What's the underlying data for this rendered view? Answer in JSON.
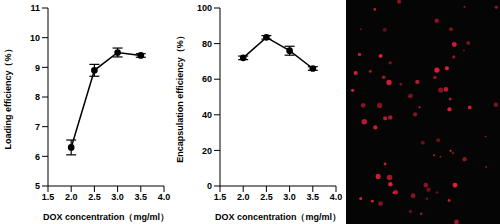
{
  "chart_data": [
    {
      "type": "line",
      "xlabel": "DOX concentration（mg/ml）",
      "ylabel": "Loading efficiency（%）",
      "x": [
        2.0,
        2.5,
        3.0,
        3.5
      ],
      "values": [
        6.3,
        8.9,
        9.5,
        9.4
      ],
      "errors": [
        0.25,
        0.2,
        0.15,
        0.06
      ],
      "color": "#000000",
      "marker": "circle",
      "line_style": "solid",
      "grid": false,
      "xlim": [
        1.5,
        4.0
      ],
      "xticks": [
        1.5,
        {
          "value": 2,
          "label": "2.0"
        },
        2.5,
        {
          "value": 3,
          "label": "3.0"
        },
        3.5,
        {
          "value": 4,
          "label": "4.0"
        }
      ],
      "ylim": [
        5,
        11
      ],
      "yticks": [
        5,
        6,
        7,
        8,
        9,
        10,
        11
      ]
    },
    {
      "type": "line",
      "xlabel": "DOX concentration（mg/ml）",
      "ylabel": "Encapsulation efficiency（%）",
      "x": [
        2.0,
        2.5,
        3.0,
        3.5
      ],
      "values": [
        72,
        83.5,
        76,
        66
      ],
      "errors": [
        1,
        1,
        2.5,
        1
      ],
      "color": "#000000",
      "marker": "circle",
      "line_style": "solid",
      "grid": false,
      "xlim": [
        1.5,
        4.0
      ],
      "xticks": [
        1.5,
        {
          "value": 2,
          "label": "2.0"
        },
        2.5,
        {
          "value": 3,
          "label": "3.0"
        },
        3.5,
        {
          "value": 4,
          "label": "4.0"
        }
      ],
      "ylim": [
        0,
        100
      ],
      "yticks": [
        0,
        20,
        40,
        60,
        80,
        100
      ]
    }
  ]
}
